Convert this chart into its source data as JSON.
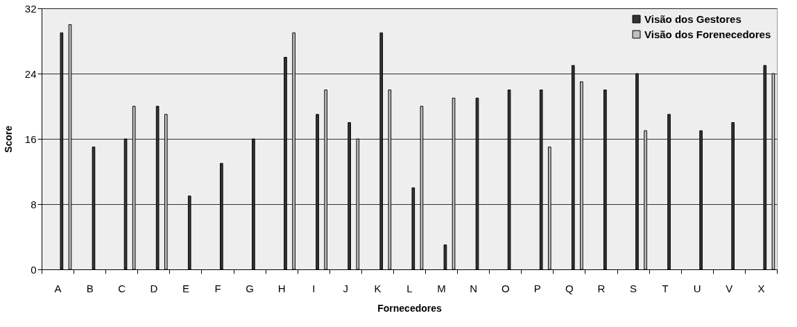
{
  "chart_data": {
    "type": "bar",
    "xlabel": "Fornecedores",
    "ylabel": "Score",
    "categories": [
      "A",
      "B",
      "C",
      "D",
      "E",
      "F",
      "G",
      "H",
      "I",
      "J",
      "K",
      "L",
      "M",
      "N",
      "O",
      "P",
      "Q",
      "R",
      "S",
      "T",
      "U",
      "V",
      "X"
    ],
    "series": [
      {
        "name": "Visão dos Gestores",
        "color": "#333333",
        "values": [
          29,
          15,
          16,
          20,
          9,
          13,
          16,
          26,
          19,
          18,
          29,
          10,
          3,
          21,
          22,
          22,
          25,
          22,
          24,
          19,
          17,
          18,
          25
        ]
      },
      {
        "name": "Visão dos Forenecedores",
        "color": "#c0c0c0",
        "values": [
          30,
          null,
          20,
          19,
          null,
          null,
          null,
          29,
          22,
          16,
          22,
          20,
          21,
          null,
          null,
          15,
          23,
          null,
          17,
          null,
          null,
          null,
          24
        ]
      }
    ],
    "ylim": [
      0,
      32
    ],
    "yticks": [
      0,
      8,
      16,
      24,
      32
    ],
    "grid": "y",
    "legend": "top right"
  }
}
